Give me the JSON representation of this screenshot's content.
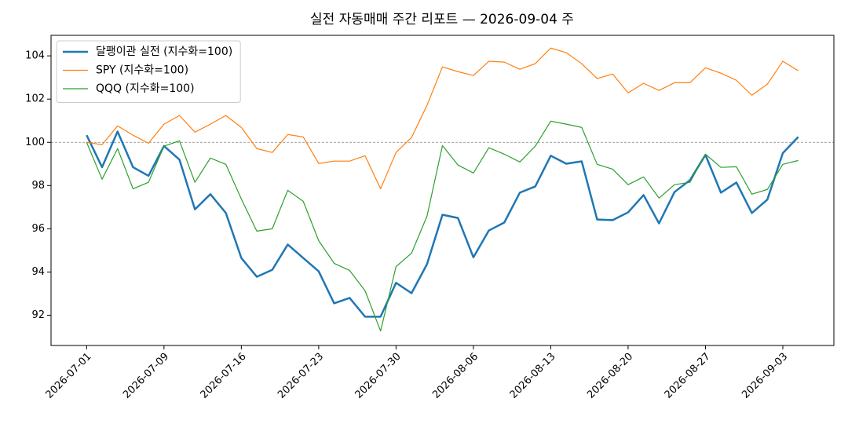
{
  "chart_data": {
    "type": "line",
    "title": "실전 자동매매 주간 리포트 — 2026-09-04 주",
    "x": [
      0,
      1,
      2,
      3,
      4,
      5,
      6,
      7,
      8,
      9,
      10,
      11,
      12,
      13,
      14,
      15,
      16,
      17,
      18,
      19,
      20,
      21,
      22,
      23,
      24,
      25,
      26,
      27,
      28,
      29,
      30,
      31,
      32,
      33,
      34,
      35,
      36,
      37,
      38,
      39,
      40,
      41,
      42,
      43,
      44,
      45,
      46
    ],
    "series": [
      {
        "name": "달팽이관 실전 (지수화=100)",
        "color": "#1f77b4",
        "linewidth": 2.5,
        "values": [
          100.33,
          98.85,
          100.5,
          98.85,
          98.45,
          99.83,
          99.2,
          96.9,
          97.6,
          96.73,
          94.65,
          93.78,
          94.1,
          95.27,
          94.65,
          94.03,
          92.55,
          92.8,
          91.93,
          91.93,
          93.5,
          93.02,
          94.36,
          96.65,
          96.5,
          94.68,
          95.92,
          96.29,
          97.67,
          97.96,
          99.38,
          99.01,
          99.12,
          96.43,
          96.4,
          96.76,
          97.56,
          96.25,
          97.7,
          98.25,
          99.42,
          97.67,
          98.14,
          96.73,
          97.35,
          99.5,
          100.25
        ]
      },
      {
        "name": "SPY (지수화=100)",
        "color": "#ff7f0e",
        "linewidth": 1.2,
        "values": [
          100,
          99.89,
          100.76,
          100.33,
          99.96,
          100.84,
          101.24,
          100.47,
          100.84,
          101.24,
          100.69,
          99.71,
          99.53,
          100.36,
          100.25,
          99.02,
          99.13,
          99.13,
          99.38,
          97.85,
          99.53,
          100.22,
          101.71,
          103.49,
          103.27,
          103.09,
          103.75,
          103.71,
          103.38,
          103.64,
          104.36,
          104.15,
          103.64,
          102.95,
          103.16,
          102.29,
          102.73,
          102.4,
          102.76,
          102.76,
          103.45,
          103.2,
          102.87,
          102.18,
          102.69,
          103.75,
          103.31
        ]
      },
      {
        "name": "QQQ (지수화=100)",
        "color": "#2ca02c",
        "linewidth": 1.2,
        "values": [
          100,
          98.29,
          99.71,
          97.85,
          98.15,
          99.82,
          100.07,
          98.15,
          99.27,
          98.98,
          97.38,
          95.89,
          96,
          97.78,
          97.27,
          95.45,
          94.4,
          94.07,
          93.13,
          91.27,
          94.25,
          94.87,
          96.58,
          99.85,
          98.95,
          98.58,
          99.75,
          99.45,
          99.09,
          99.82,
          100.98,
          100.84,
          100.69,
          98.98,
          98.76,
          98.04,
          98.4,
          97.42,
          98.04,
          98.15,
          99.45,
          98.84,
          98.87,
          97.6,
          97.82,
          98.98,
          99.16
        ]
      }
    ],
    "xlim": [
      -2.3,
      48.3
    ],
    "xticks": [
      {
        "value": 0,
        "label": "2026-07-01"
      },
      {
        "value": 5,
        "label": "2026-07-09"
      },
      {
        "value": 10,
        "label": "2026-07-16"
      },
      {
        "value": 15,
        "label": "2026-07-23"
      },
      {
        "value": 20,
        "label": "2026-07-30"
      },
      {
        "value": 25,
        "label": "2026-08-06"
      },
      {
        "value": 30,
        "label": "2026-08-13"
      },
      {
        "value": 35,
        "label": "2026-08-20"
      },
      {
        "value": 40,
        "label": "2026-08-27"
      },
      {
        "value": 45,
        "label": "2026-09-03"
      }
    ],
    "ylim": [
      90.6,
      104.95
    ],
    "yticks": [
      92,
      94,
      96,
      98,
      100,
      102,
      104
    ],
    "hline": 100,
    "legend": "upper left"
  }
}
